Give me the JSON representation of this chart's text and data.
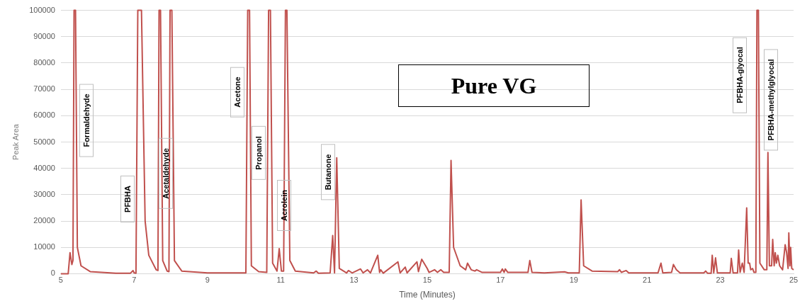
{
  "chart_data": {
    "type": "line",
    "title": "Pure VG",
    "xlabel": "Time (Minutes)",
    "ylabel": "Peak Area",
    "xlim": [
      5,
      25
    ],
    "xticks": [
      5,
      7,
      9,
      11,
      13,
      15,
      17,
      19,
      21,
      23,
      25
    ],
    "ylim": [
      0,
      100000
    ],
    "yticks": [
      0,
      10000,
      20000,
      30000,
      40000,
      50000,
      60000,
      70000,
      80000,
      90000,
      100000
    ],
    "grid": "y",
    "legend": false,
    "marker": "none",
    "line_style": "solid",
    "series": [
      {
        "color": "#c0504d",
        "x": [
          5.0,
          5.2,
          5.25,
          5.3,
          5.33,
          5.36,
          5.4,
          5.45,
          5.55,
          5.8,
          6.5,
          6.9,
          6.97,
          7.0,
          7.05,
          7.1,
          7.2,
          7.3,
          7.4,
          7.6,
          7.65,
          7.68,
          7.72,
          7.78,
          7.9,
          7.95,
          7.98,
          8.03,
          8.1,
          8.3,
          9.0,
          10.05,
          10.1,
          10.15,
          10.2,
          10.4,
          10.62,
          10.67,
          10.72,
          10.78,
          10.9,
          10.96,
          11.02,
          11.08,
          11.13,
          11.17,
          11.25,
          11.4,
          11.9,
          11.97,
          12.03,
          12.35,
          12.42,
          12.47,
          12.53,
          12.6,
          12.8,
          12.85,
          12.95,
          13.18,
          13.25,
          13.37,
          13.45,
          13.65,
          13.7,
          13.73,
          13.8,
          14.2,
          14.26,
          14.4,
          14.45,
          14.72,
          14.76,
          14.85,
          15.0,
          15.05,
          15.2,
          15.28,
          15.37,
          15.45,
          15.6,
          15.65,
          15.72,
          15.9,
          16.05,
          16.1,
          16.2,
          16.3,
          16.35,
          16.5,
          17.0,
          17.05,
          17.1,
          17.13,
          17.2,
          17.75,
          17.8,
          17.86,
          18.2,
          18.75,
          18.85,
          19.15,
          19.2,
          19.27,
          19.5,
          20.2,
          20.25,
          20.3,
          20.43,
          20.5,
          21.3,
          21.38,
          21.43,
          21.67,
          21.72,
          21.8,
          21.9,
          22.55,
          22.6,
          22.65,
          22.75,
          22.78,
          22.82,
          22.87,
          22.92,
          23.27,
          23.3,
          23.35,
          23.47,
          23.5,
          23.54,
          23.6,
          23.65,
          23.72,
          23.76,
          23.8,
          23.83,
          23.88,
          23.92,
          23.97,
          24.0,
          24.04,
          24.08,
          24.2,
          24.27,
          24.3,
          24.34,
          24.4,
          24.43,
          24.47,
          24.5,
          24.53,
          24.57,
          24.62,
          24.7,
          24.77,
          24.81,
          24.85,
          24.87,
          24.9,
          24.92,
          24.95,
          25.0
        ],
        "values": [
          0,
          0,
          8000,
          3500,
          5000,
          100000,
          100000,
          10000,
          3000,
          800,
          200,
          200,
          1200,
          300,
          200,
          100000,
          100000,
          20000,
          7000,
          1500,
          1200,
          100000,
          100000,
          5000,
          1000,
          800,
          100000,
          100000,
          5000,
          1000,
          300,
          300,
          100000,
          100000,
          3000,
          800,
          500,
          100000,
          100000,
          4000,
          1000,
          9500,
          1000,
          1000,
          100000,
          100000,
          5000,
          1000,
          300,
          1000,
          200,
          300,
          14500,
          300,
          44000,
          2000,
          300,
          1200,
          300,
          1800,
          300,
          1500,
          300,
          7000,
          500,
          1500,
          200,
          4500,
          300,
          2500,
          300,
          4500,
          800,
          5500,
          2000,
          500,
          1500,
          500,
          1500,
          500,
          500,
          43000,
          10000,
          3000,
          1500,
          4000,
          1500,
          1000,
          1500,
          500,
          500,
          1800,
          500,
          1800,
          500,
          500,
          5000,
          500,
          300,
          700,
          300,
          300,
          28000,
          3000,
          1000,
          800,
          1500,
          500,
          1200,
          300,
          300,
          4000,
          300,
          500,
          3500,
          1500,
          300,
          300,
          1000,
          200,
          200,
          7000,
          300,
          6000,
          300,
          300,
          5800,
          300,
          300,
          9000,
          500,
          4000,
          500,
          25000,
          4000,
          4000,
          1500,
          2000,
          500,
          500,
          100000,
          100000,
          4000,
          1500,
          1500,
          46000,
          3000,
          3000,
          13000,
          3000,
          8000,
          4000,
          7000,
          3000,
          1500,
          11000,
          8000,
          2000,
          15500,
          3000,
          10000,
          2000,
          1500
        ]
      }
    ],
    "annotations": [
      "Formaldehyde",
      "PFBHA",
      "Acetaldehyde",
      "Acetone",
      "Propanol",
      "Acrolein",
      "Butanone",
      "PFBHA-glyocal",
      "PFBHA-methylglyocal"
    ]
  }
}
